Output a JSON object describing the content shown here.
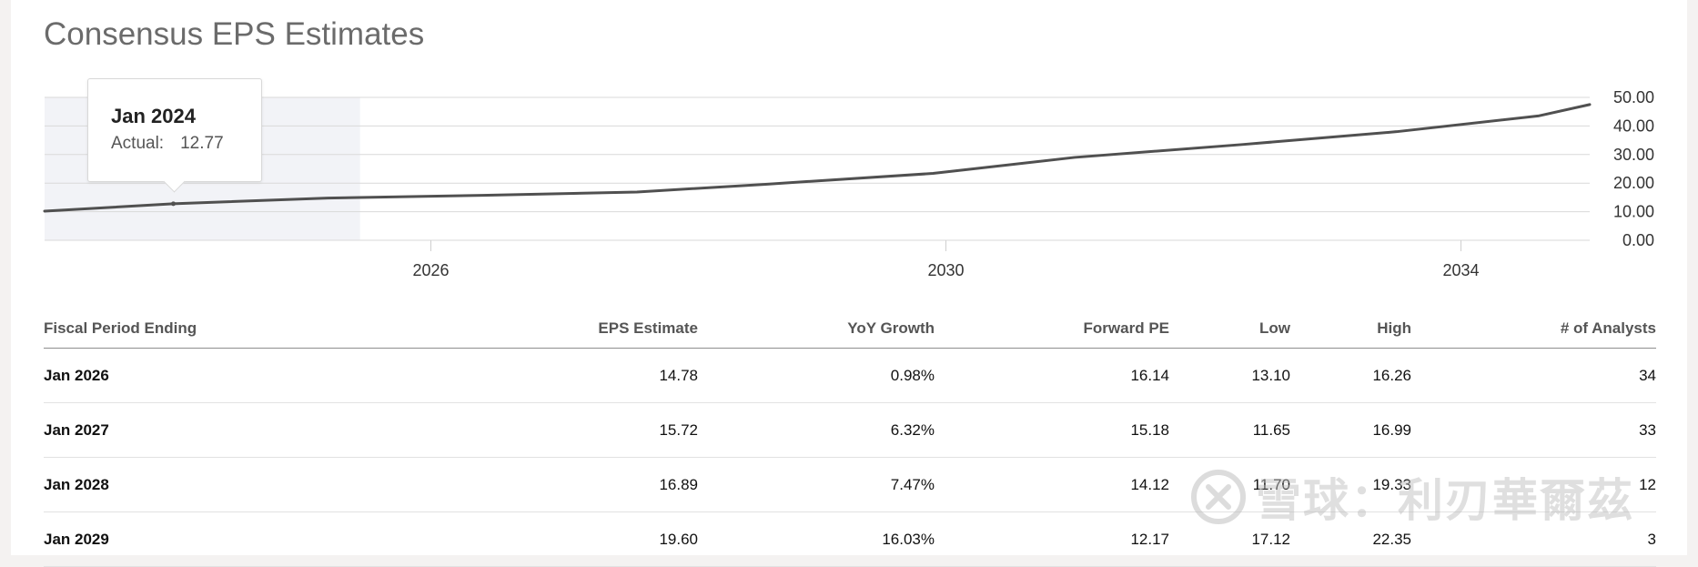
{
  "title": "Consensus EPS Estimates",
  "tooltip": {
    "title": "Jan 2024",
    "label": "Actual:",
    "value": "12.77"
  },
  "chart_data": {
    "type": "line",
    "x_ticks": [
      "2026",
      "2030",
      "2034"
    ],
    "x_tick_values": [
      2026,
      2030,
      2034
    ],
    "y_ticks": [
      "0.00",
      "10.00",
      "20.00",
      "30.00",
      "40.00",
      "50.00"
    ],
    "y_tick_values": [
      0,
      10,
      20,
      30,
      40,
      50
    ],
    "ylim": [
      0,
      50
    ],
    "xlim": [
      2023,
      2035
    ],
    "y_axis_position": "right",
    "grid": true,
    "highlight_range": [
      2023,
      2025.45
    ],
    "series": [
      {
        "color": "#505050",
        "x": [
          2023,
          2024,
          2025.2,
          2026.4,
          2027.6,
          2028.6,
          2029.9,
          2031.0,
          2032.3,
          2033.5,
          2034.6,
          2035.0
        ],
        "y": [
          10.2,
          12.77,
          14.78,
          15.72,
          16.89,
          19.6,
          23.4,
          29.0,
          33.5,
          38.0,
          43.5,
          47.5
        ]
      }
    ],
    "tooltip_point": {
      "x": 2024,
      "y": 12.77
    }
  },
  "table": {
    "headers": [
      "Fiscal Period Ending",
      "EPS Estimate",
      "YoY Growth",
      "Forward PE",
      "Low",
      "High",
      "# of Analysts"
    ],
    "rows": [
      [
        "Jan 2026",
        "14.78",
        "0.98%",
        "16.14",
        "13.10",
        "16.26",
        "34"
      ],
      [
        "Jan 2027",
        "15.72",
        "6.32%",
        "15.18",
        "11.65",
        "16.99",
        "33"
      ],
      [
        "Jan 2028",
        "16.89",
        "7.47%",
        "14.12",
        "11.70",
        "19.33",
        "12"
      ],
      [
        "Jan 2029",
        "19.60",
        "16.03%",
        "12.17",
        "17.12",
        "22.35",
        "3"
      ]
    ]
  },
  "watermark": {
    "text": "雪球：利刃華爾茲",
    "logo": "xueqiu-logo-icon"
  }
}
